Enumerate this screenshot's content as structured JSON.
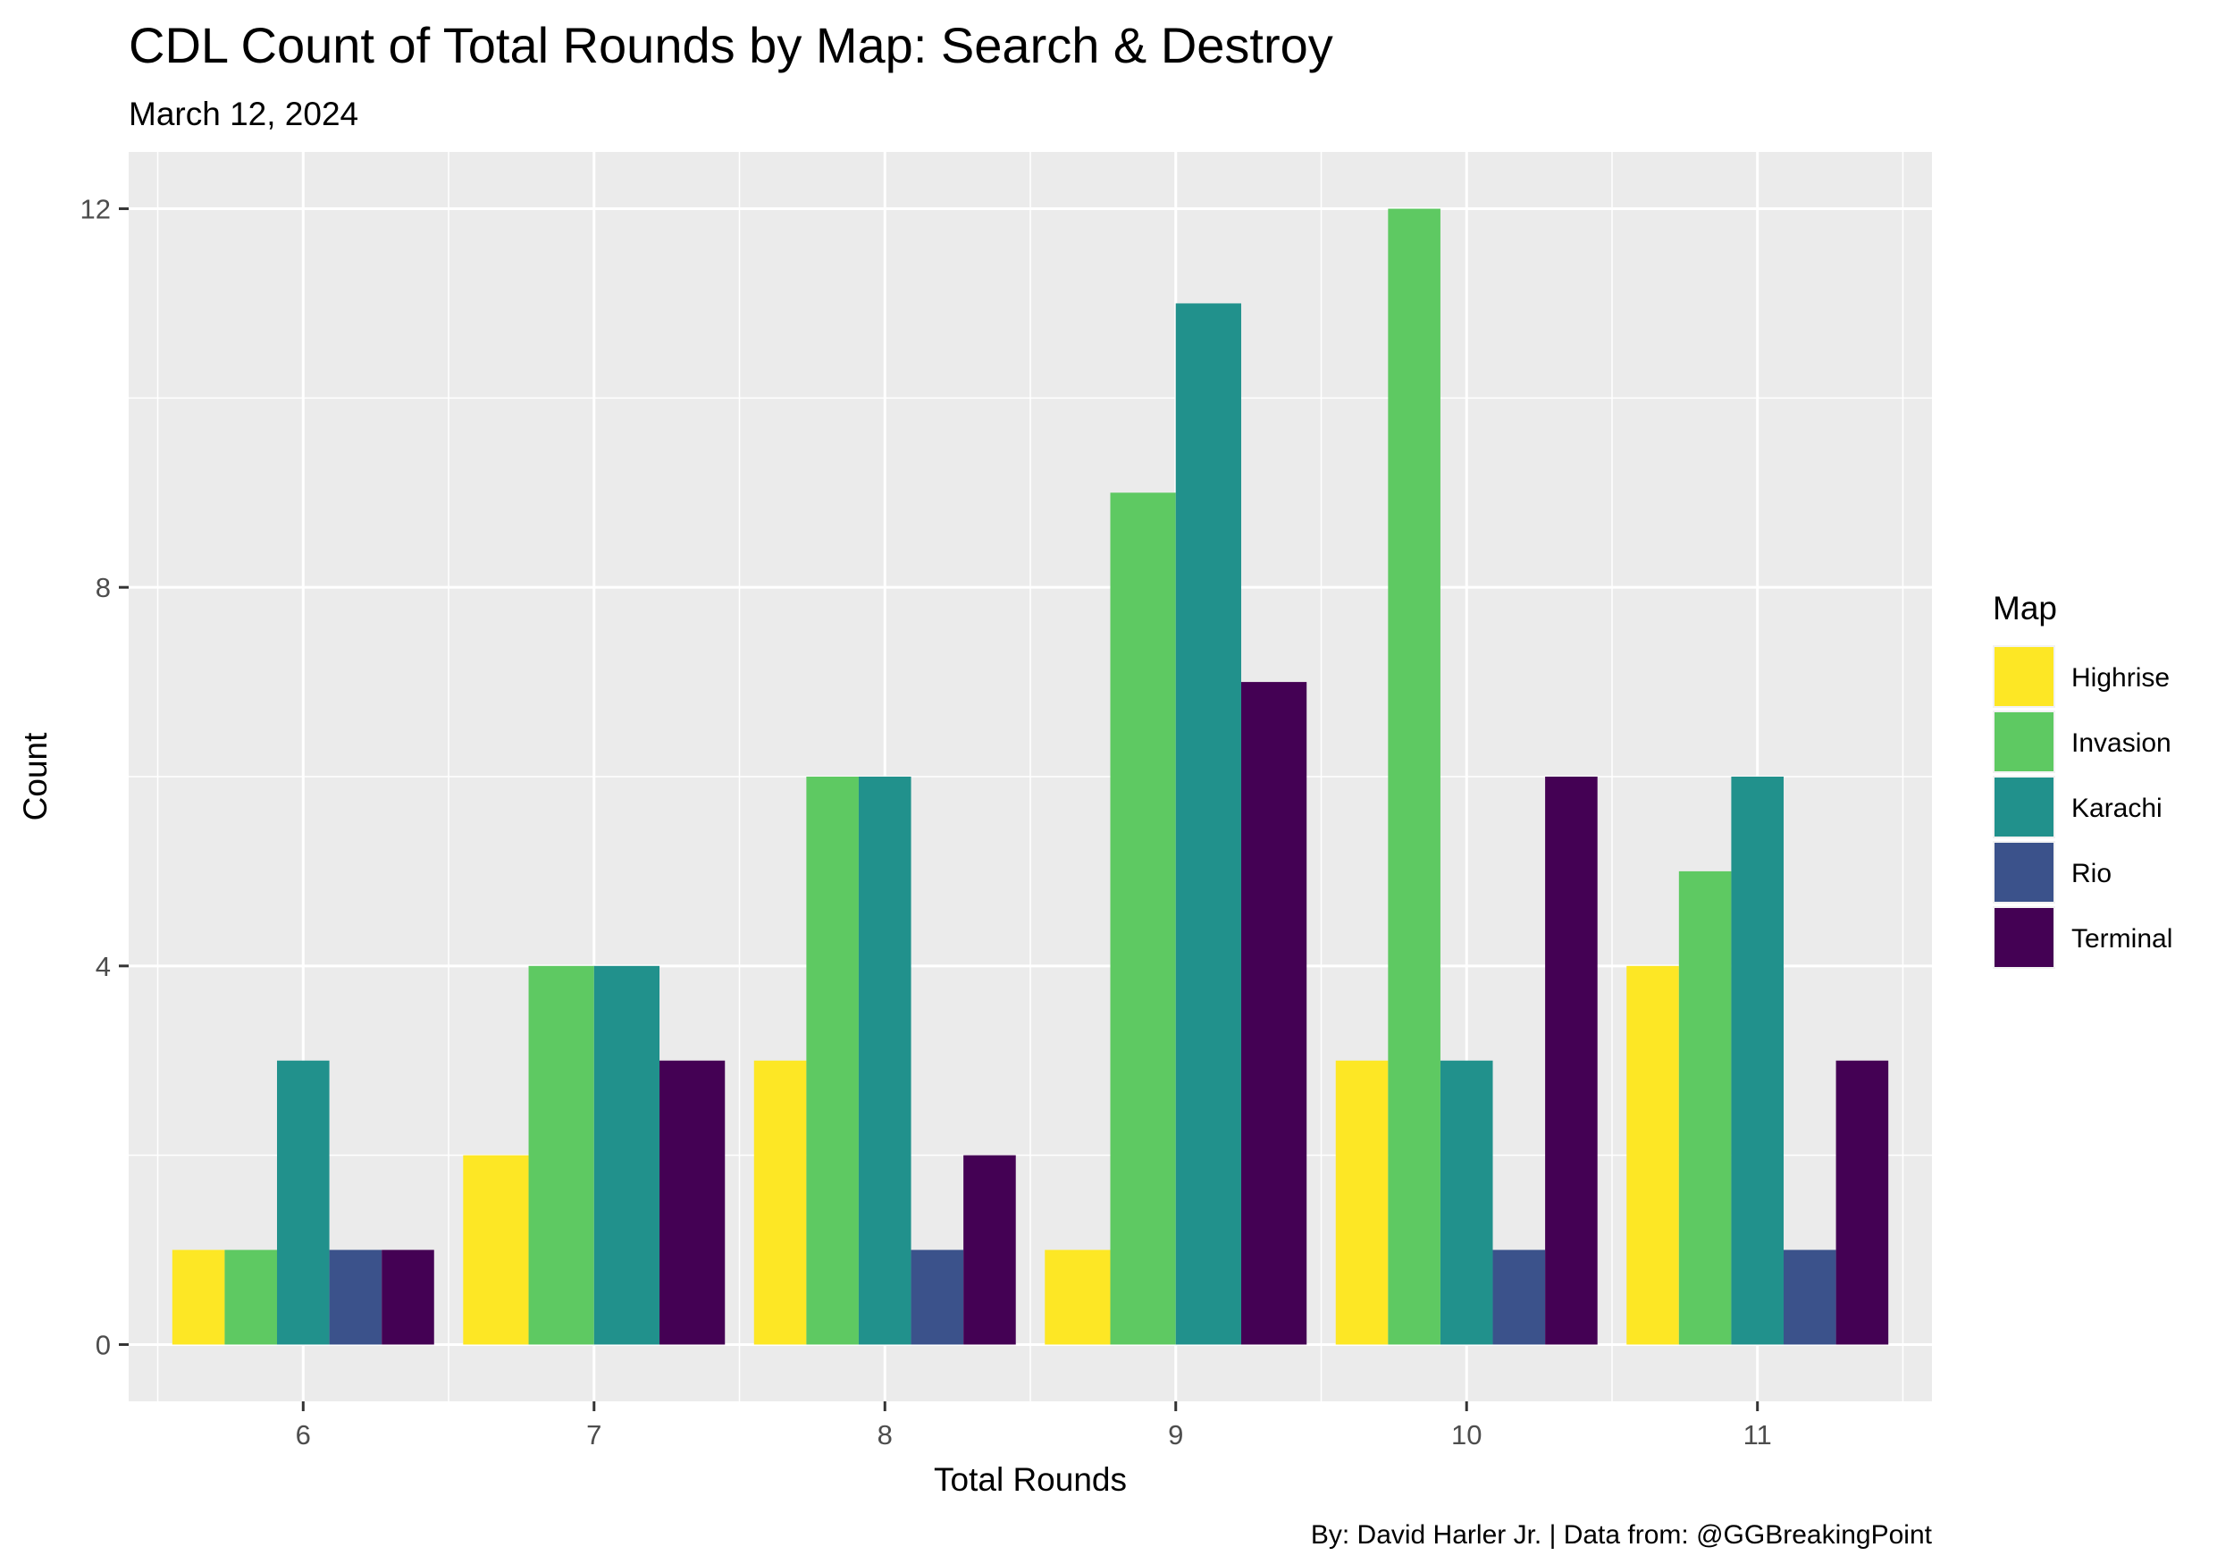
{
  "chart_data": {
    "type": "bar",
    "title": "CDL Count of Total Rounds by Map: Search & Destroy",
    "subtitle": "March 12, 2024",
    "xlabel": "Total Rounds",
    "ylabel": "Count",
    "caption": "By: David Harler Jr. | Data from: @GGBreakingPoint",
    "categories": [
      "6",
      "7",
      "8",
      "9",
      "10",
      "11"
    ],
    "yticks": [
      0,
      4,
      8,
      12
    ],
    "ylim": [
      -0.6,
      12.6
    ],
    "grid": true,
    "legend": {
      "title": "Map",
      "position": "right"
    },
    "series": [
      {
        "name": "Highrise",
        "color": "#FDE725",
        "values": [
          1,
          2,
          3,
          1,
          3,
          4
        ]
      },
      {
        "name": "Invasion",
        "color": "#5EC962",
        "values": [
          1,
          4,
          6,
          9,
          12,
          5
        ]
      },
      {
        "name": "Karachi",
        "color": "#21918C",
        "values": [
          3,
          4,
          6,
          11,
          3,
          6
        ]
      },
      {
        "name": "Rio",
        "color": "#3B528B",
        "values": [
          1,
          null,
          1,
          null,
          1,
          1
        ]
      },
      {
        "name": "Terminal",
        "color": "#440154",
        "values": [
          1,
          3,
          2,
          7,
          6,
          3
        ]
      }
    ]
  },
  "style": {
    "panel_background": "#EBEBEB",
    "grid_major": "#FFFFFF",
    "tick_color": "#333333"
  }
}
